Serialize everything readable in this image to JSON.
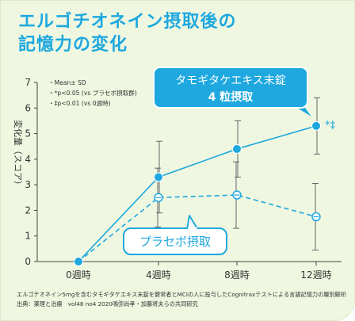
{
  "title_lines": [
    "エルゴチオネイン摂取後の",
    "記憶力の変化"
  ],
  "colors": {
    "accent": "#1ea8df",
    "axis": "#444444",
    "errorbar": "#666666",
    "background": "#eff7e1"
  },
  "legend_notes": [
    "・Mean± SD",
    "・*p<0.05 (vs プラセボ摂取群)",
    "・‡p<0.01 (vs 0週時)"
  ],
  "callouts": {
    "treatment": [
      "タモギタケエキス末錠",
      "4 粒摂取"
    ],
    "placebo": "プラセボ摂取",
    "significance": "*‡"
  },
  "footnotes": [
    "エルゴチオネイン5mgを含むタモギタケエキス末錠を健常者とMCIの人に投与したCognitraxテストによる言語記憶力の層別解析",
    "出典：薬理と治療　vol48 no4 2020鳴弥尚孝・加藤将夫らの共同研究"
  ],
  "chart_data": {
    "type": "line",
    "categories": [
      "0週時",
      "4週時",
      "8週時",
      "12週時"
    ],
    "ylabel": "変化量（スコア）",
    "xlabel": "",
    "ylim": [
      0,
      7
    ],
    "yticks": [
      0,
      1,
      2,
      3,
      4,
      5,
      6,
      7
    ],
    "grid": false,
    "series": [
      {
        "name": "タモギタケエキス末錠 4 粒摂取",
        "style": "solid",
        "marker": "filled-circle",
        "values": [
          0,
          3.3,
          4.4,
          5.3
        ],
        "sd": [
          0,
          1.4,
          1.1,
          1.1
        ]
      },
      {
        "name": "プラセボ摂取",
        "style": "dashed",
        "marker": "open-circle",
        "values": [
          0,
          2.5,
          2.6,
          1.75
        ],
        "sd": [
          0,
          1.15,
          1.3,
          1.3
        ]
      }
    ]
  }
}
